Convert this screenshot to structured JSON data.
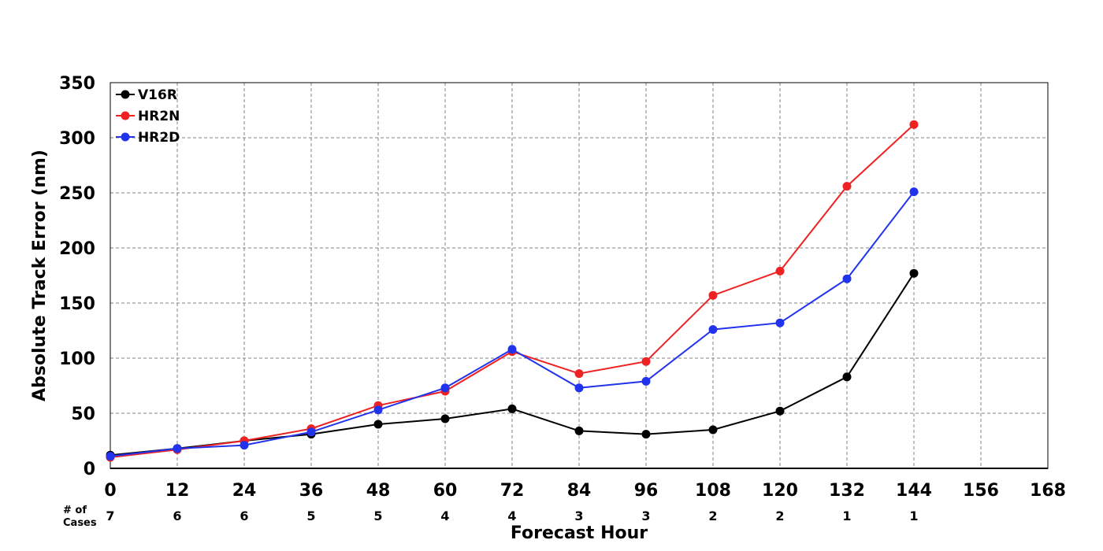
{
  "chart_data": {
    "type": "line",
    "xlabel": "Forecast Hour",
    "ylabel": "Absolute Track Error (nm)",
    "xlim": [
      0,
      168
    ],
    "ylim": [
      0,
      350
    ],
    "x_ticks": [
      0,
      12,
      24,
      36,
      48,
      60,
      72,
      84,
      96,
      108,
      120,
      132,
      144,
      156,
      168
    ],
    "y_ticks": [
      0,
      50,
      100,
      150,
      200,
      250,
      300,
      350
    ],
    "grid": true,
    "legend_position": "top-left",
    "x": [
      0,
      12,
      24,
      36,
      48,
      60,
      72,
      84,
      96,
      108,
      120,
      132,
      144
    ],
    "series": [
      {
        "name": "V16R",
        "color": "#000000",
        "values": [
          12,
          18,
          25,
          31,
          40,
          45,
          54,
          34,
          31,
          35,
          52,
          83,
          177
        ]
      },
      {
        "name": "HR2N",
        "color": "#ee2222",
        "values": [
          10,
          17,
          25,
          36,
          57,
          70,
          106,
          86,
          97,
          157,
          179,
          256,
          312
        ]
      },
      {
        "name": "HR2D",
        "color": "#2233ee",
        "values": [
          11,
          18,
          21,
          33,
          53,
          73,
          108,
          73,
          79,
          126,
          132,
          172,
          251
        ]
      }
    ],
    "cases_label_line1": "# of",
    "cases_label_line2": "Cases",
    "cases": [
      7,
      6,
      6,
      5,
      5,
      4,
      4,
      3,
      3,
      2,
      2,
      1,
      1
    ]
  }
}
